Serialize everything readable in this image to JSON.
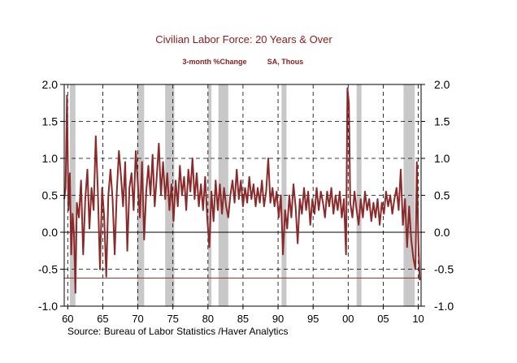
{
  "chart_data": {
    "type": "line",
    "title": "Civilian Labor Force: 20 Years & Over",
    "subtitle_left": "3-month %Change",
    "subtitle_right": "SA, Thous",
    "source": "Source:  Bureau of Labor Statistics /Haver Analytics",
    "x_range": [
      1959.5,
      2010.4
    ],
    "ylim": [
      -1.0,
      2.0
    ],
    "y_ticks": [
      "2.0",
      "1.5",
      "1.0",
      "0.5",
      "0.0",
      "-0.5",
      "-1.0"
    ],
    "y_tick_values": [
      2.0,
      1.5,
      1.0,
      0.5,
      0.0,
      -0.5,
      -1.0
    ],
    "x_tick_labels": [
      "60",
      "65",
      "70",
      "75",
      "80",
      "85",
      "90",
      "95",
      "00",
      "05",
      "10"
    ],
    "x_tick_years": [
      1960,
      1965,
      1970,
      1975,
      1980,
      1985,
      1990,
      1995,
      2000,
      2005,
      2010
    ],
    "recessions": [
      [
        1960.3,
        1961.1
      ],
      [
        1969.9,
        1970.9
      ],
      [
        1973.9,
        1975.2
      ],
      [
        1980.0,
        1980.5
      ],
      [
        1981.5,
        1982.9
      ],
      [
        1990.5,
        1991.2
      ],
      [
        2001.2,
        2001.9
      ],
      [
        2007.9,
        2009.5
      ]
    ],
    "reference_line": -0.62,
    "series": [
      {
        "name": "Civilian Labor Force: 20 Years & Over, 3-month %Change",
        "color": "#8b2a2a",
        "points": [
          [
            1959.5,
            0.45
          ],
          [
            1959.7,
            0.6
          ],
          [
            1959.9,
            1.85
          ],
          [
            1960.1,
            0.3
          ],
          [
            1960.3,
            0.8
          ],
          [
            1960.5,
            -0.3
          ],
          [
            1960.7,
            0.25
          ],
          [
            1960.9,
            -0.05
          ],
          [
            1961.1,
            -0.82
          ],
          [
            1961.3,
            0.4
          ],
          [
            1961.6,
            0.2
          ],
          [
            1961.9,
            0.7
          ],
          [
            1962.2,
            -0.3
          ],
          [
            1962.5,
            0.45
          ],
          [
            1962.8,
            0.85
          ],
          [
            1963.1,
            0.05
          ],
          [
            1963.4,
            0.6
          ],
          [
            1963.7,
            0.3
          ],
          [
            1964.0,
            1.3
          ],
          [
            1964.3,
            0.55
          ],
          [
            1964.6,
            -0.5
          ],
          [
            1964.9,
            0.6
          ],
          [
            1965.2,
            0.2
          ],
          [
            1965.5,
            -0.6
          ],
          [
            1965.8,
            0.5
          ],
          [
            1966.1,
            0.85
          ],
          [
            1966.4,
            0.45
          ],
          [
            1966.7,
            -0.3
          ],
          [
            1967.0,
            0.55
          ],
          [
            1967.3,
            1.1
          ],
          [
            1967.6,
            0.75
          ],
          [
            1967.9,
            0.35
          ],
          [
            1968.2,
            0.95
          ],
          [
            1968.5,
            -0.25
          ],
          [
            1968.8,
            0.6
          ],
          [
            1969.1,
            0.8
          ],
          [
            1969.4,
            0.3
          ],
          [
            1969.7,
            1.1
          ],
          [
            1970.0,
            0.65
          ],
          [
            1970.3,
            0.2
          ],
          [
            1970.6,
            0.95
          ],
          [
            1970.9,
            -0.1
          ],
          [
            1971.2,
            0.55
          ],
          [
            1971.5,
            0.9
          ],
          [
            1971.8,
            0.5
          ],
          [
            1972.1,
            1.05
          ],
          [
            1972.4,
            0.35
          ],
          [
            1972.7,
            0.75
          ],
          [
            1973.0,
            1.2
          ],
          [
            1973.3,
            0.5
          ],
          [
            1973.6,
            0.95
          ],
          [
            1973.9,
            0.45
          ],
          [
            1974.2,
            0.8
          ],
          [
            1974.5,
            0.3
          ],
          [
            1974.8,
            0.65
          ],
          [
            1975.1,
            0.15
          ],
          [
            1975.4,
            0.7
          ],
          [
            1975.7,
            0.35
          ],
          [
            1976.0,
            0.9
          ],
          [
            1976.3,
            0.5
          ],
          [
            1976.6,
            0.75
          ],
          [
            1976.9,
            0.3
          ],
          [
            1977.2,
            0.85
          ],
          [
            1977.5,
            0.55
          ],
          [
            1977.8,
            1.0
          ],
          [
            1978.1,
            0.45
          ],
          [
            1978.4,
            0.8
          ],
          [
            1978.7,
            0.35
          ],
          [
            1979.0,
            0.65
          ],
          [
            1979.3,
            0.3
          ],
          [
            1979.6,
            0.75
          ],
          [
            1979.9,
            0.2
          ],
          [
            1980.2,
            -0.2
          ],
          [
            1980.5,
            0.55
          ],
          [
            1980.8,
            0.15
          ],
          [
            1981.1,
            0.7
          ],
          [
            1981.4,
            0.3
          ],
          [
            1981.7,
            0.65
          ],
          [
            1982.0,
            0.25
          ],
          [
            1982.3,
            0.6
          ],
          [
            1982.6,
            0.35
          ],
          [
            1982.9,
            0.2
          ],
          [
            1983.2,
            0.5
          ],
          [
            1983.5,
            0.7
          ],
          [
            1983.8,
            0.4
          ],
          [
            1984.1,
            0.85
          ],
          [
            1984.4,
            0.45
          ],
          [
            1984.7,
            0.7
          ],
          [
            1985.0,
            0.35
          ],
          [
            1985.3,
            0.6
          ],
          [
            1985.6,
            0.4
          ],
          [
            1985.9,
            0.75
          ],
          [
            1986.2,
            0.45
          ],
          [
            1986.5,
            0.65
          ],
          [
            1986.8,
            0.35
          ],
          [
            1987.1,
            0.6
          ],
          [
            1987.4,
            0.4
          ],
          [
            1987.7,
            0.7
          ],
          [
            1988.0,
            0.35
          ],
          [
            1988.3,
            0.55
          ],
          [
            1988.6,
            1.0
          ],
          [
            1988.9,
            0.4
          ],
          [
            1989.2,
            0.6
          ],
          [
            1989.5,
            0.35
          ],
          [
            1989.8,
            0.55
          ],
          [
            1990.1,
            0.2
          ],
          [
            1990.4,
            0.5
          ],
          [
            1990.7,
            -0.3
          ],
          [
            1991.0,
            0.3
          ],
          [
            1991.3,
            0.05
          ],
          [
            1991.6,
            0.5
          ],
          [
            1991.9,
            0.2
          ],
          [
            1992.2,
            0.65
          ],
          [
            1992.5,
            0.35
          ],
          [
            1992.8,
            -0.15
          ],
          [
            1993.1,
            0.45
          ],
          [
            1993.4,
            0.25
          ],
          [
            1993.7,
            0.6
          ],
          [
            1994.0,
            0.3
          ],
          [
            1994.3,
            0.55
          ],
          [
            1994.6,
            0.1
          ],
          [
            1994.9,
            0.45
          ],
          [
            1995.2,
            0.25
          ],
          [
            1995.5,
            0.6
          ],
          [
            1995.8,
            0.3
          ],
          [
            1996.1,
            0.55
          ],
          [
            1996.4,
            0.4
          ],
          [
            1996.7,
            0.2
          ],
          [
            1997.0,
            0.55
          ],
          [
            1997.3,
            0.35
          ],
          [
            1997.6,
            0.6
          ],
          [
            1997.9,
            0.25
          ],
          [
            1998.2,
            0.5
          ],
          [
            1998.5,
            0.3
          ],
          [
            1998.8,
            0.55
          ],
          [
            1999.1,
            0.2
          ],
          [
            1999.4,
            0.45
          ],
          [
            1999.7,
            -0.3
          ],
          [
            1999.9,
            1.95
          ],
          [
            2000.1,
            1.75
          ],
          [
            2000.3,
            0.4
          ],
          [
            2000.6,
            0.2
          ],
          [
            2000.9,
            0.55
          ],
          [
            2001.2,
            0.3
          ],
          [
            2001.5,
            0.1
          ],
          [
            2001.8,
            0.45
          ],
          [
            2002.1,
            0.2
          ],
          [
            2002.4,
            0.55
          ],
          [
            2002.7,
            0.3
          ],
          [
            2003.0,
            0.45
          ],
          [
            2003.3,
            0.15
          ],
          [
            2003.6,
            0.4
          ],
          [
            2003.9,
            0.2
          ],
          [
            2004.2,
            0.45
          ],
          [
            2004.5,
            0.1
          ],
          [
            2004.8,
            0.4
          ],
          [
            2005.1,
            0.25
          ],
          [
            2005.4,
            0.55
          ],
          [
            2005.7,
            0.35
          ],
          [
            2006.0,
            0.5
          ],
          [
            2006.3,
            0.25
          ],
          [
            2006.6,
            0.45
          ],
          [
            2006.9,
            0.6
          ],
          [
            2007.2,
            0.3
          ],
          [
            2007.5,
            0.85
          ],
          [
            2007.8,
            0.1
          ],
          [
            2008.1,
            0.45
          ],
          [
            2008.4,
            -0.2
          ],
          [
            2008.7,
            0.35
          ],
          [
            2009.0,
            -0.1
          ],
          [
            2009.3,
            -0.35
          ],
          [
            2009.6,
            -0.5
          ],
          [
            2009.8,
            0.95
          ],
          [
            2010.0,
            -0.1
          ],
          [
            2010.2,
            -0.65
          ]
        ]
      }
    ]
  }
}
